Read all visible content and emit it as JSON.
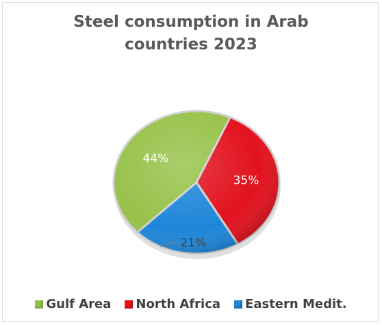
{
  "chart_data": {
    "type": "pie",
    "title_lines": [
      "Steel consumption in Arab",
      "countries 2023"
    ],
    "slices": [
      {
        "name": "North Africa",
        "value": 35,
        "label": "35%",
        "color": "#e2121e"
      },
      {
        "name": "Eastern Medit.",
        "value": 21,
        "label": "21%",
        "color": "#1e86d9"
      },
      {
        "name": "Gulf Area",
        "value": 44,
        "label": "44%",
        "color": "#97c24a"
      }
    ],
    "legend": [
      {
        "label": "Gulf Area",
        "color": "#97c24a"
      },
      {
        "label": "North Africa",
        "color": "#e2121e"
      },
      {
        "label": "Eastern Medit.",
        "color": "#1e86d9"
      }
    ],
    "legend_position": "bottom"
  }
}
